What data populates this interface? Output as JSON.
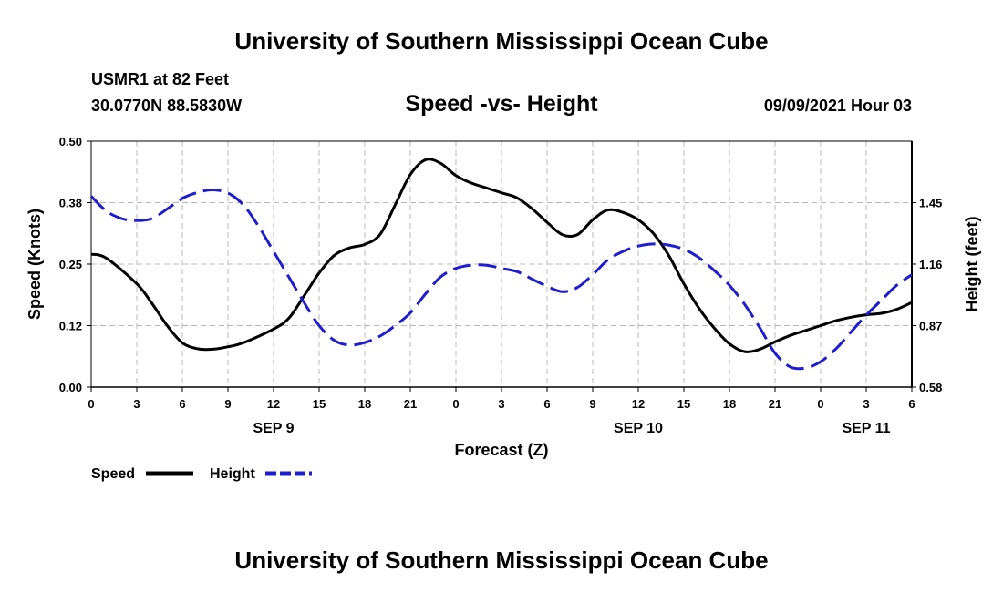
{
  "header": {
    "title": "University of Southern Mississippi Ocean Cube",
    "station": "USMR1 at 82 Feet",
    "location": "30.0770N  88.5830W",
    "datetime": "09/09/2021 Hour 03"
  },
  "footer": {
    "title": "University of Southern Mississippi Ocean Cube"
  },
  "chart_data": {
    "type": "line",
    "title": "Speed -vs- Height",
    "xlabel": "Forecast (Z)",
    "ylabel_left": "Speed (Knots)",
    "ylabel_right": "Height (feet)",
    "x_range_hours": [
      0,
      54
    ],
    "x_tick_hours": [
      0,
      3,
      6,
      9,
      12,
      15,
      18,
      21,
      24,
      27,
      30,
      33,
      36,
      39,
      42,
      45,
      48,
      51,
      54
    ],
    "x_tick_labels": [
      "0",
      "3",
      "6",
      "9",
      "12",
      "15",
      "18",
      "21",
      "0",
      "3",
      "6",
      "9",
      "12",
      "15",
      "18",
      "21",
      "0",
      "3",
      "6"
    ],
    "day_labels": [
      {
        "label": "SEP 9",
        "hour": 12
      },
      {
        "label": "SEP 10",
        "hour": 36
      },
      {
        "label": "SEP 11",
        "hour": 51
      }
    ],
    "y_left_range": [
      0,
      0.5
    ],
    "y_left_ticks": [
      0.0,
      0.125,
      0.25,
      0.375,
      0.5
    ],
    "y_left_tick_labels": [
      "0.00",
      "0.12",
      "0.25",
      "0.38",
      "0.50"
    ],
    "y_right_range": [
      0.58,
      1.74
    ],
    "y_right_ticks": [
      0.58,
      0.87,
      1.16,
      1.45
    ],
    "y_right_tick_labels": [
      "0.58",
      "0.87",
      "1.16",
      "1.45"
    ],
    "grid": true,
    "series": [
      {
        "name": "Speed",
        "axis": "left",
        "color": "#000000",
        "dash": "solid",
        "x": [
          0,
          1,
          3,
          4,
          5,
          6,
          7,
          8,
          9,
          10,
          12,
          13,
          14,
          15,
          16,
          17,
          18,
          19,
          20,
          21,
          22,
          23,
          24,
          25,
          26,
          27,
          28,
          29,
          30,
          31,
          32,
          33,
          34,
          35,
          36,
          37,
          38,
          39,
          40,
          41,
          42,
          43,
          44,
          45,
          46,
          47,
          48,
          49,
          50,
          51,
          52,
          53,
          54
        ],
        "values": [
          0.27,
          0.262,
          0.21,
          0.17,
          0.125,
          0.09,
          0.078,
          0.077,
          0.082,
          0.09,
          0.118,
          0.14,
          0.185,
          0.232,
          0.268,
          0.283,
          0.29,
          0.31,
          0.37,
          0.432,
          0.462,
          0.455,
          0.43,
          0.415,
          0.405,
          0.395,
          0.385,
          0.363,
          0.335,
          0.31,
          0.31,
          0.34,
          0.36,
          0.355,
          0.34,
          0.312,
          0.268,
          0.21,
          0.16,
          0.12,
          0.088,
          0.072,
          0.077,
          0.092,
          0.105,
          0.115,
          0.125,
          0.135,
          0.142,
          0.147,
          0.15,
          0.158,
          0.172
        ]
      },
      {
        "name": "Height",
        "axis": "right",
        "color": "#1e1ed0",
        "dash": "dashed",
        "x": [
          0,
          1,
          2,
          3,
          4,
          5,
          6,
          7,
          8,
          9,
          10,
          11,
          12,
          13,
          14,
          15,
          16,
          17,
          18,
          19,
          20,
          21,
          22,
          23,
          24,
          25,
          26,
          27,
          28,
          29,
          30,
          31,
          32,
          33,
          34,
          35,
          36,
          37,
          38,
          39,
          40,
          41,
          42,
          43,
          44,
          45,
          46,
          47,
          48,
          49,
          50,
          51,
          52,
          53,
          54
        ],
        "values": [
          1.48,
          1.41,
          1.375,
          1.365,
          1.375,
          1.42,
          1.47,
          1.498,
          1.51,
          1.495,
          1.44,
          1.34,
          1.22,
          1.1,
          0.98,
          0.87,
          0.8,
          0.778,
          0.79,
          0.82,
          0.87,
          0.93,
          1.02,
          1.1,
          1.14,
          1.155,
          1.155,
          1.14,
          1.125,
          1.09,
          1.055,
          1.03,
          1.05,
          1.11,
          1.18,
          1.22,
          1.245,
          1.255,
          1.25,
          1.23,
          1.19,
          1.13,
          1.06,
          0.97,
          0.86,
          0.74,
          0.675,
          0.67,
          0.7,
          0.76,
          0.84,
          0.92,
          0.99,
          1.06,
          1.11
        ]
      }
    ],
    "legend": [
      {
        "label": "Speed",
        "color": "#000000",
        "dash": "solid"
      },
      {
        "label": "Height",
        "color": "#1e1ed0",
        "dash": "dashed"
      }
    ],
    "legend_position": "bottom-left"
  }
}
